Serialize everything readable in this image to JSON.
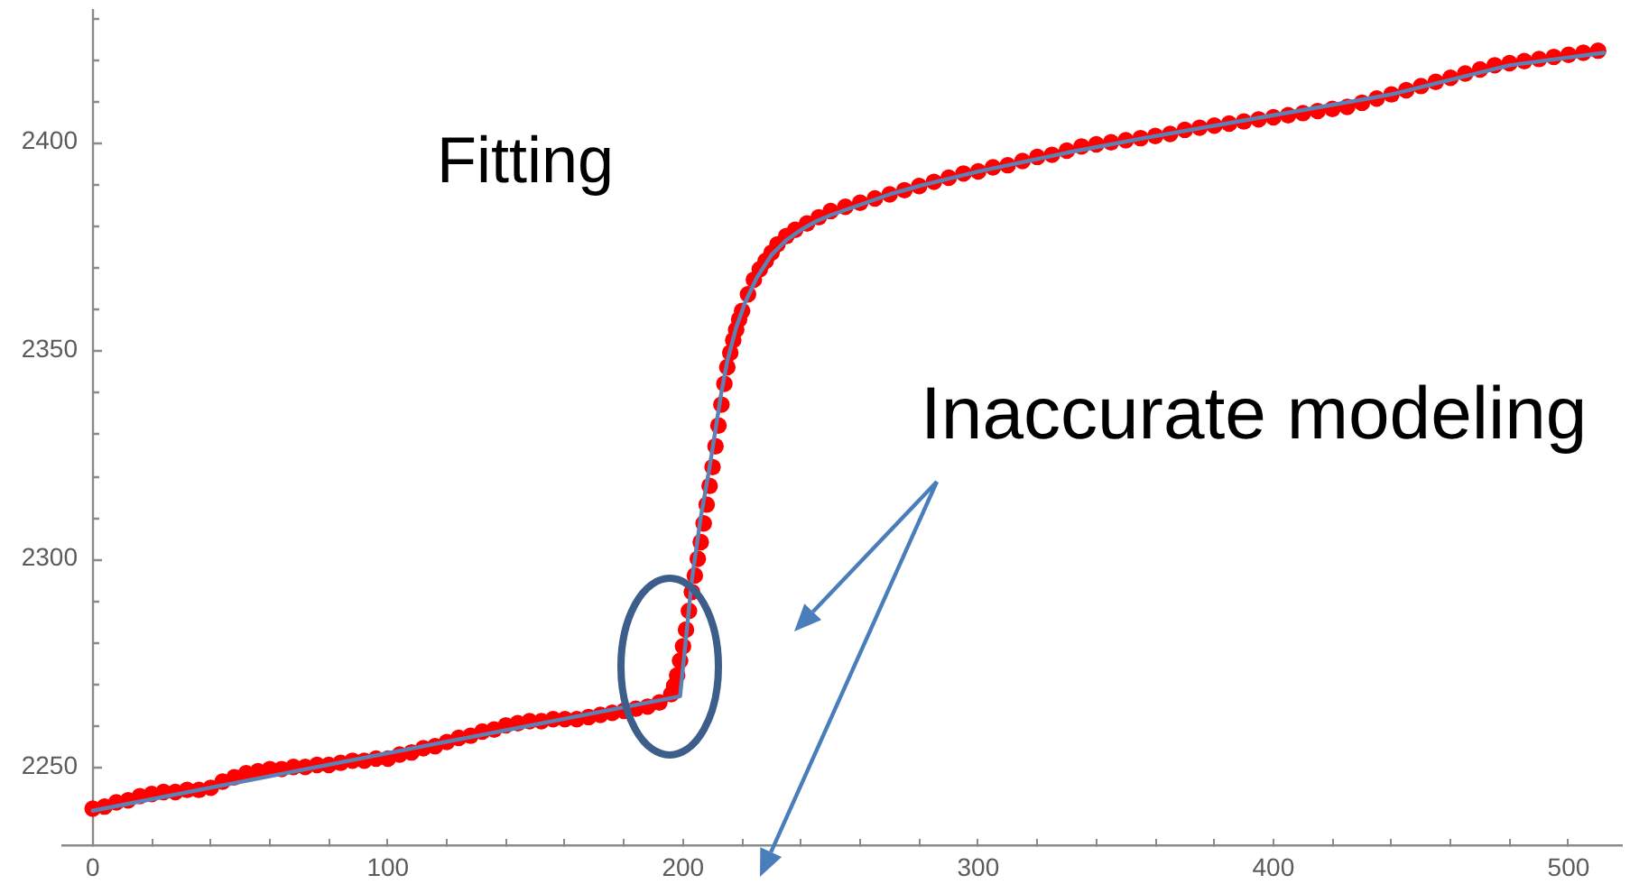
{
  "chart_data": {
    "type": "scatter",
    "annotations": [
      "Fitting",
      "Inaccurate modeling"
    ],
    "xlim": [
      -10,
      518
    ],
    "xticks": [
      0,
      {
        "value": 20,
        "label": null
      },
      {
        "value": 40,
        "label": null
      },
      {
        "value": 60,
        "label": null
      },
      {
        "value": 80,
        "label": null
      },
      100,
      {
        "value": 120,
        "label": null
      },
      {
        "value": 140,
        "label": null
      },
      {
        "value": 160,
        "label": null
      },
      {
        "value": 180,
        "label": null
      },
      200,
      {
        "value": 220,
        "label": null
      },
      {
        "value": 240,
        "label": null
      },
      {
        "value": 260,
        "label": null
      },
      {
        "value": 280,
        "label": null
      },
      300,
      {
        "value": 320,
        "label": null
      },
      {
        "value": 340,
        "label": null
      },
      {
        "value": 360,
        "label": null
      },
      {
        "value": 380,
        "label": null
      },
      400,
      {
        "value": 420,
        "label": null
      },
      {
        "value": 440,
        "label": null
      },
      {
        "value": 460,
        "label": null
      },
      {
        "value": 480,
        "label": null
      },
      500
    ],
    "ylim": [
      2231,
      2432
    ],
    "yticks": [
      {
        "value": 2240,
        "label": null
      },
      2250,
      {
        "value": 2260,
        "label": null
      },
      {
        "value": 2270,
        "label": null
      },
      {
        "value": 2280,
        "label": null
      },
      {
        "value": 2290,
        "label": null
      },
      2300,
      {
        "value": 2310,
        "label": null
      },
      {
        "value": 2320,
        "label": null
      },
      {
        "value": 2330,
        "label": null
      },
      {
        "value": 2340,
        "label": null
      },
      2350,
      {
        "value": 2360,
        "label": null
      },
      {
        "value": 2370,
        "label": null
      },
      {
        "value": 2380,
        "label": null
      },
      {
        "value": 2390,
        "label": null
      },
      2400,
      {
        "value": 2410,
        "label": null
      },
      {
        "value": 2420,
        "label": null
      },
      {
        "value": 2430,
        "label": null
      }
    ],
    "series": [
      {
        "type": "scatter",
        "color": "#ff0000",
        "marker": "circle",
        "x": [
          0,
          4,
          8,
          12,
          16,
          20,
          24,
          28,
          32,
          36,
          40,
          44,
          48,
          52,
          56,
          60,
          64,
          68,
          72,
          76,
          80,
          84,
          88,
          92,
          96,
          100,
          104,
          108,
          112,
          116,
          120,
          124,
          128,
          132,
          136,
          140,
          144,
          148,
          152,
          156,
          160,
          164,
          168,
          172,
          176,
          180,
          184,
          188,
          192,
          196,
          197,
          198,
          199,
          200,
          201,
          202,
          203,
          204,
          205,
          206,
          207,
          208,
          209,
          210,
          211,
          212,
          213,
          214,
          215,
          216,
          217,
          218,
          219,
          220,
          222,
          224,
          226,
          228,
          230,
          232,
          235,
          238,
          242,
          246,
          250,
          255,
          260,
          265,
          270,
          275,
          280,
          285,
          290,
          295,
          300,
          305,
          310,
          315,
          320,
          325,
          330,
          335,
          340,
          345,
          350,
          355,
          360,
          365,
          370,
          375,
          380,
          385,
          390,
          395,
          400,
          405,
          410,
          415,
          420,
          425,
          430,
          435,
          440,
          445,
          450,
          455,
          460,
          465,
          470,
          475,
          480,
          485,
          490,
          495,
          500,
          505,
          510
        ],
        "values": [
          2240,
          2240.5,
          2241.5,
          2242,
          2243,
          2243.5,
          2244,
          2244,
          2244.5,
          2244.5,
          2245,
          2246.5,
          2247.5,
          2248.5,
          2249,
          2249.5,
          2249.5,
          2250,
          2250,
          2250.5,
          2250.5,
          2251,
          2251.5,
          2251.5,
          2252,
          2252,
          2253,
          2253.5,
          2254.5,
          2255,
          2256,
          2257,
          2257.5,
          2258.5,
          2259,
          2260,
          2260.5,
          2261,
          2261,
          2261.5,
          2261.5,
          2261.5,
          2262,
          2262.5,
          2263,
          2263.5,
          2264,
          2264.5,
          2265.5,
          2267.5,
          2269.5,
          2272,
          2275.5,
          2279,
          2283,
          2287.5,
          2292,
          2296,
          2300,
          2304,
          2308.5,
          2313,
          2317.5,
          2322,
          2327,
          2332,
          2337,
          2342,
          2346,
          2349.5,
          2352.5,
          2355,
          2357.5,
          2359.5,
          2363.5,
          2367,
          2369.5,
          2371.5,
          2373.5,
          2375.5,
          2377.5,
          2379,
          2380.5,
          2382,
          2383.5,
          2384.5,
          2385.5,
          2386.5,
          2387.5,
          2388.5,
          2389.5,
          2390.5,
          2391.5,
          2392.5,
          2393,
          2394,
          2394.5,
          2395.5,
          2396.5,
          2397,
          2398,
          2399,
          2399.5,
          2400,
          2400.5,
          2401,
          2401.5,
          2402,
          2403,
          2403.5,
          2404,
          2404.5,
          2405,
          2405.5,
          2406,
          2406.5,
          2407,
          2407.5,
          2408,
          2408.5,
          2409.5,
          2410.5,
          2411.5,
          2412.5,
          2413.5,
          2414.5,
          2415.5,
          2416.5,
          2417.5,
          2418.5,
          2419,
          2419.5,
          2420,
          2420.5,
          2421,
          2421.5,
          2422
        ]
      },
      {
        "type": "line",
        "color": "#5e81b5",
        "marker": "none",
        "x": [
          0,
          199,
          203,
          206,
          209,
          211,
          213,
          215,
          218,
          221,
          225,
          230,
          235,
          240,
          245,
          250,
          260,
          270,
          280,
          300,
          330,
          360,
          400,
          440,
          480,
          512
        ],
        "values": [
          2239.5,
          2267,
          2295,
          2310,
          2322,
          2331,
          2340,
          2347.5,
          2355.5,
          2361.5,
          2367.5,
          2373,
          2376.5,
          2379,
          2381,
          2382.5,
          2385,
          2387.5,
          2389.5,
          2393,
          2397.5,
          2401.5,
          2406.5,
          2411.5,
          2418.5,
          2421.5
        ]
      }
    ]
  }
}
